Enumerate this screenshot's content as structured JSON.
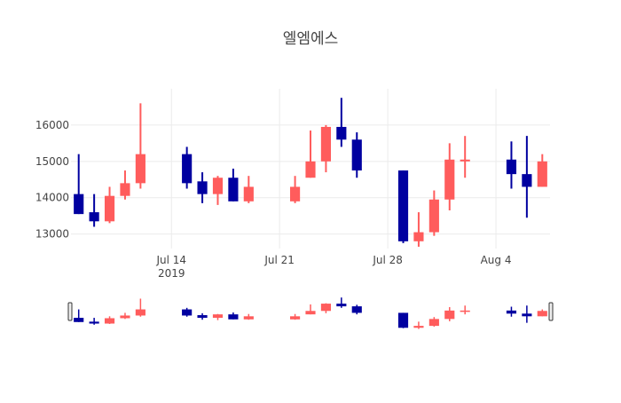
{
  "chart_data": {
    "type": "candlestick",
    "title": "엘엠에스",
    "xlabel": "",
    "ylabel": "",
    "x_tick_labels": [
      {
        "date": "2019-07-14",
        "label": "Jul 14",
        "sublabel": "2019"
      },
      {
        "date": "2019-07-21",
        "label": "Jul 21",
        "sublabel": ""
      },
      {
        "date": "2019-07-28",
        "label": "Jul 28",
        "sublabel": ""
      },
      {
        "date": "2019-08-04",
        "label": "Aug 4",
        "sublabel": ""
      }
    ],
    "y_ticks": [
      13000,
      14000,
      15000,
      16000
    ],
    "xlim": [
      "2019-07-07T12:00",
      "2019-08-07T12:00"
    ],
    "ylim": [
      12600,
      17000
    ],
    "grid": true,
    "legend": "none",
    "rangeslider": true,
    "colors": {
      "increasing": "#ff5c5c",
      "decreasing": "#0000a0",
      "grid": "#ebebeb",
      "text": "#444444"
    },
    "candles": [
      {
        "date": "2019-07-08",
        "open": 14100,
        "high": 15200,
        "low": 13550,
        "close": 13550
      },
      {
        "date": "2019-07-09",
        "open": 13600,
        "high": 14100,
        "low": 13200,
        "close": 13350
      },
      {
        "date": "2019-07-10",
        "open": 13350,
        "high": 14300,
        "low": 13300,
        "close": 14050
      },
      {
        "date": "2019-07-11",
        "open": 14050,
        "high": 14750,
        "low": 13950,
        "close": 14400
      },
      {
        "date": "2019-07-12",
        "open": 14400,
        "high": 16600,
        "low": 14250,
        "close": 15200
      },
      {
        "date": "2019-07-15",
        "open": 15200,
        "high": 15400,
        "low": 14250,
        "close": 14400
      },
      {
        "date": "2019-07-16",
        "open": 14450,
        "high": 14700,
        "low": 13850,
        "close": 14100
      },
      {
        "date": "2019-07-17",
        "open": 14100,
        "high": 14600,
        "low": 13800,
        "close": 14550
      },
      {
        "date": "2019-07-18",
        "open": 14550,
        "high": 14800,
        "low": 13900,
        "close": 13900
      },
      {
        "date": "2019-07-19",
        "open": 13900,
        "high": 14600,
        "low": 13850,
        "close": 14300
      },
      {
        "date": "2019-07-22",
        "open": 13900,
        "high": 14600,
        "low": 13850,
        "close": 14300
      },
      {
        "date": "2019-07-23",
        "open": 14550,
        "high": 15850,
        "low": 14550,
        "close": 15000
      },
      {
        "date": "2019-07-24",
        "open": 15000,
        "high": 16000,
        "low": 14700,
        "close": 15950
      },
      {
        "date": "2019-07-25",
        "open": 15950,
        "high": 16750,
        "low": 15400,
        "close": 15600
      },
      {
        "date": "2019-07-26",
        "open": 15600,
        "high": 15800,
        "low": 14550,
        "close": 14750
      },
      {
        "date": "2019-07-29",
        "open": 14750,
        "high": 14750,
        "low": 12750,
        "close": 12800
      },
      {
        "date": "2019-07-30",
        "open": 12800,
        "high": 13600,
        "low": 12650,
        "close": 13050
      },
      {
        "date": "2019-07-31",
        "open": 13050,
        "high": 14200,
        "low": 12950,
        "close": 13950
      },
      {
        "date": "2019-08-01",
        "open": 13950,
        "high": 15500,
        "low": 13650,
        "close": 15050
      },
      {
        "date": "2019-08-02",
        "open": 15000,
        "high": 15700,
        "low": 14550,
        "close": 15050
      },
      {
        "date": "2019-08-05",
        "open": 15050,
        "high": 15550,
        "low": 14250,
        "close": 14650
      },
      {
        "date": "2019-08-06",
        "open": 14650,
        "high": 15700,
        "low": 13450,
        "close": 14300
      },
      {
        "date": "2019-08-07",
        "open": 14300,
        "high": 15200,
        "low": 14300,
        "close": 15000
      }
    ]
  }
}
